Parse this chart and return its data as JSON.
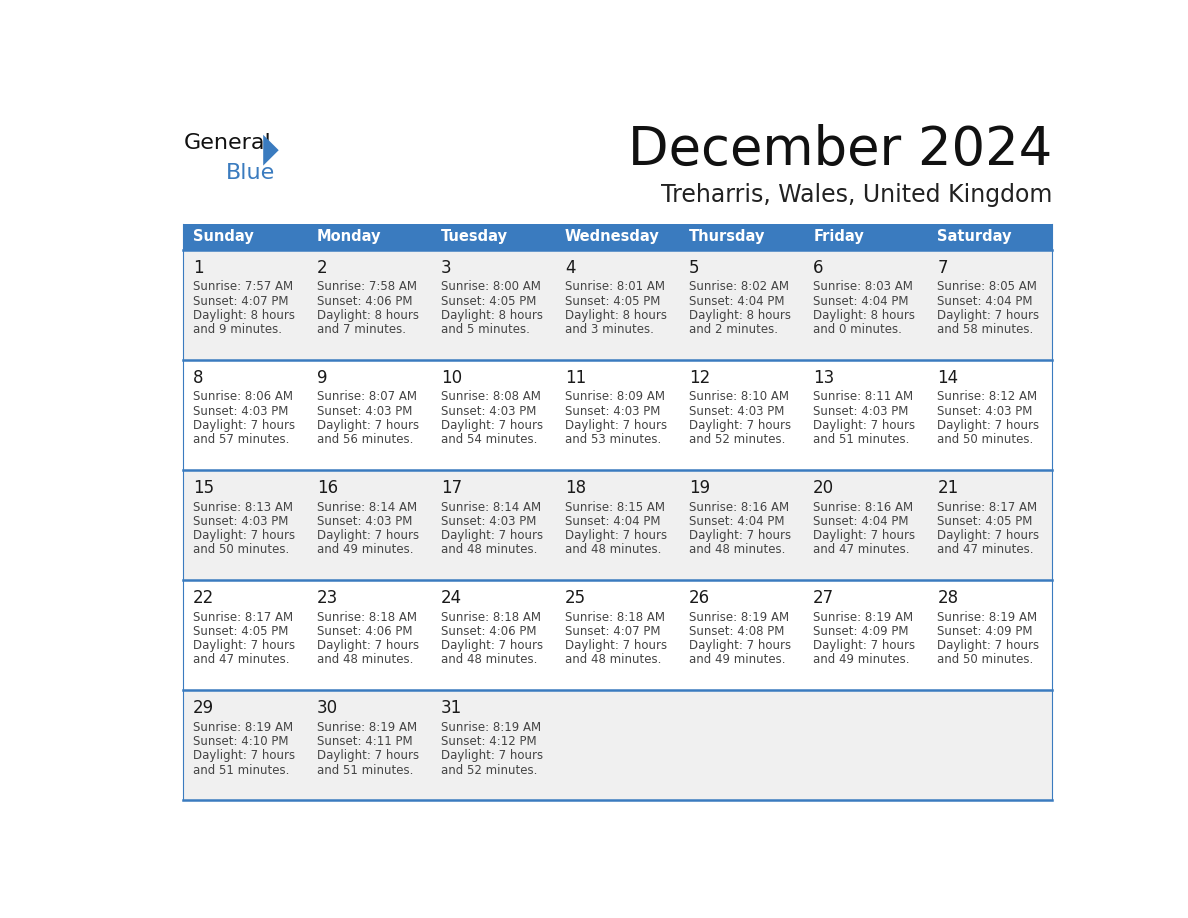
{
  "title": "December 2024",
  "subtitle": "Treharris, Wales, United Kingdom",
  "days_of_week": [
    "Sunday",
    "Monday",
    "Tuesday",
    "Wednesday",
    "Thursday",
    "Friday",
    "Saturday"
  ],
  "header_bg": "#3a7bbf",
  "header_text": "#ffffff",
  "row_bg_odd": "#f0f0f0",
  "row_bg_even": "#ffffff",
  "border_color": "#3a7bbf",
  "day_num_color": "#222222",
  "cell_text_color": "#444444",
  "calendar_data": [
    [
      {
        "day": 1,
        "sunrise": "7:57 AM",
        "sunset": "4:07 PM",
        "daylight": "8 hours",
        "daylight2": "and 9 minutes."
      },
      {
        "day": 2,
        "sunrise": "7:58 AM",
        "sunset": "4:06 PM",
        "daylight": "8 hours",
        "daylight2": "and 7 minutes."
      },
      {
        "day": 3,
        "sunrise": "8:00 AM",
        "sunset": "4:05 PM",
        "daylight": "8 hours",
        "daylight2": "and 5 minutes."
      },
      {
        "day": 4,
        "sunrise": "8:01 AM",
        "sunset": "4:05 PM",
        "daylight": "8 hours",
        "daylight2": "and 3 minutes."
      },
      {
        "day": 5,
        "sunrise": "8:02 AM",
        "sunset": "4:04 PM",
        "daylight": "8 hours",
        "daylight2": "and 2 minutes."
      },
      {
        "day": 6,
        "sunrise": "8:03 AM",
        "sunset": "4:04 PM",
        "daylight": "8 hours",
        "daylight2": "and 0 minutes."
      },
      {
        "day": 7,
        "sunrise": "8:05 AM",
        "sunset": "4:04 PM",
        "daylight": "7 hours",
        "daylight2": "and 58 minutes."
      }
    ],
    [
      {
        "day": 8,
        "sunrise": "8:06 AM",
        "sunset": "4:03 PM",
        "daylight": "7 hours",
        "daylight2": "and 57 minutes."
      },
      {
        "day": 9,
        "sunrise": "8:07 AM",
        "sunset": "4:03 PM",
        "daylight": "7 hours",
        "daylight2": "and 56 minutes."
      },
      {
        "day": 10,
        "sunrise": "8:08 AM",
        "sunset": "4:03 PM",
        "daylight": "7 hours",
        "daylight2": "and 54 minutes."
      },
      {
        "day": 11,
        "sunrise": "8:09 AM",
        "sunset": "4:03 PM",
        "daylight": "7 hours",
        "daylight2": "and 53 minutes."
      },
      {
        "day": 12,
        "sunrise": "8:10 AM",
        "sunset": "4:03 PM",
        "daylight": "7 hours",
        "daylight2": "and 52 minutes."
      },
      {
        "day": 13,
        "sunrise": "8:11 AM",
        "sunset": "4:03 PM",
        "daylight": "7 hours",
        "daylight2": "and 51 minutes."
      },
      {
        "day": 14,
        "sunrise": "8:12 AM",
        "sunset": "4:03 PM",
        "daylight": "7 hours",
        "daylight2": "and 50 minutes."
      }
    ],
    [
      {
        "day": 15,
        "sunrise": "8:13 AM",
        "sunset": "4:03 PM",
        "daylight": "7 hours",
        "daylight2": "and 50 minutes."
      },
      {
        "day": 16,
        "sunrise": "8:14 AM",
        "sunset": "4:03 PM",
        "daylight": "7 hours",
        "daylight2": "and 49 minutes."
      },
      {
        "day": 17,
        "sunrise": "8:14 AM",
        "sunset": "4:03 PM",
        "daylight": "7 hours",
        "daylight2": "and 48 minutes."
      },
      {
        "day": 18,
        "sunrise": "8:15 AM",
        "sunset": "4:04 PM",
        "daylight": "7 hours",
        "daylight2": "and 48 minutes."
      },
      {
        "day": 19,
        "sunrise": "8:16 AM",
        "sunset": "4:04 PM",
        "daylight": "7 hours",
        "daylight2": "and 48 minutes."
      },
      {
        "day": 20,
        "sunrise": "8:16 AM",
        "sunset": "4:04 PM",
        "daylight": "7 hours",
        "daylight2": "and 47 minutes."
      },
      {
        "day": 21,
        "sunrise": "8:17 AM",
        "sunset": "4:05 PM",
        "daylight": "7 hours",
        "daylight2": "and 47 minutes."
      }
    ],
    [
      {
        "day": 22,
        "sunrise": "8:17 AM",
        "sunset": "4:05 PM",
        "daylight": "7 hours",
        "daylight2": "and 47 minutes."
      },
      {
        "day": 23,
        "sunrise": "8:18 AM",
        "sunset": "4:06 PM",
        "daylight": "7 hours",
        "daylight2": "and 48 minutes."
      },
      {
        "day": 24,
        "sunrise": "8:18 AM",
        "sunset": "4:06 PM",
        "daylight": "7 hours",
        "daylight2": "and 48 minutes."
      },
      {
        "day": 25,
        "sunrise": "8:18 AM",
        "sunset": "4:07 PM",
        "daylight": "7 hours",
        "daylight2": "and 48 minutes."
      },
      {
        "day": 26,
        "sunrise": "8:19 AM",
        "sunset": "4:08 PM",
        "daylight": "7 hours",
        "daylight2": "and 49 minutes."
      },
      {
        "day": 27,
        "sunrise": "8:19 AM",
        "sunset": "4:09 PM",
        "daylight": "7 hours",
        "daylight2": "and 49 minutes."
      },
      {
        "day": 28,
        "sunrise": "8:19 AM",
        "sunset": "4:09 PM",
        "daylight": "7 hours",
        "daylight2": "and 50 minutes."
      }
    ],
    [
      {
        "day": 29,
        "sunrise": "8:19 AM",
        "sunset": "4:10 PM",
        "daylight": "7 hours",
        "daylight2": "and 51 minutes."
      },
      {
        "day": 30,
        "sunrise": "8:19 AM",
        "sunset": "4:11 PM",
        "daylight": "7 hours",
        "daylight2": "and 51 minutes."
      },
      {
        "day": 31,
        "sunrise": "8:19 AM",
        "sunset": "4:12 PM",
        "daylight": "7 hours",
        "daylight2": "and 52 minutes."
      },
      null,
      null,
      null,
      null
    ]
  ]
}
